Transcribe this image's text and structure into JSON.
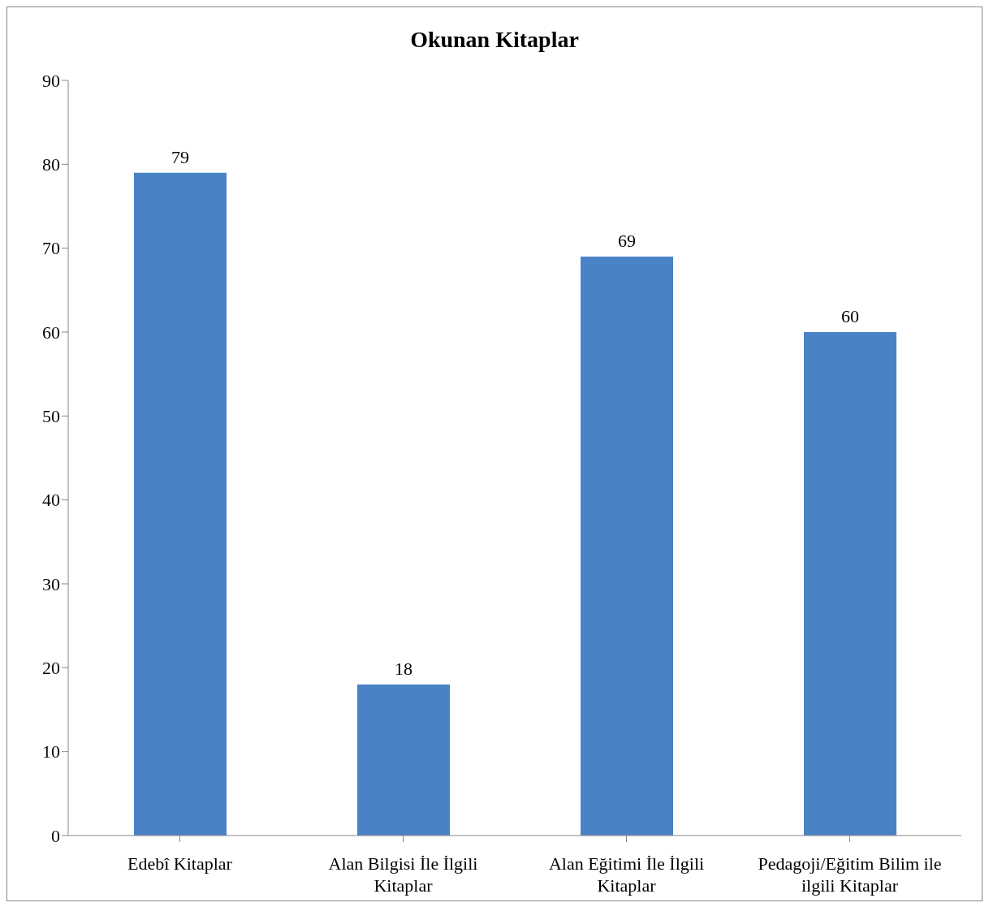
{
  "chart_data": {
    "type": "bar",
    "title": "Okunan Kitaplar",
    "categories": [
      "Edebî Kitaplar",
      "Alan Bilgisi İle İlgili Kitaplar",
      "Alan Eğitimi İle İlgili Kitaplar",
      "Pedagoji/Eğitim Bilim ile ilgili Kitaplar"
    ],
    "values": [
      79,
      18,
      69,
      60
    ],
    "color": "#4a82c6",
    "ylim": [
      0,
      90
    ],
    "yticks": [
      0,
      10,
      20,
      30,
      40,
      50,
      60,
      70,
      80,
      90
    ],
    "grid": false,
    "data_labels": true
  }
}
